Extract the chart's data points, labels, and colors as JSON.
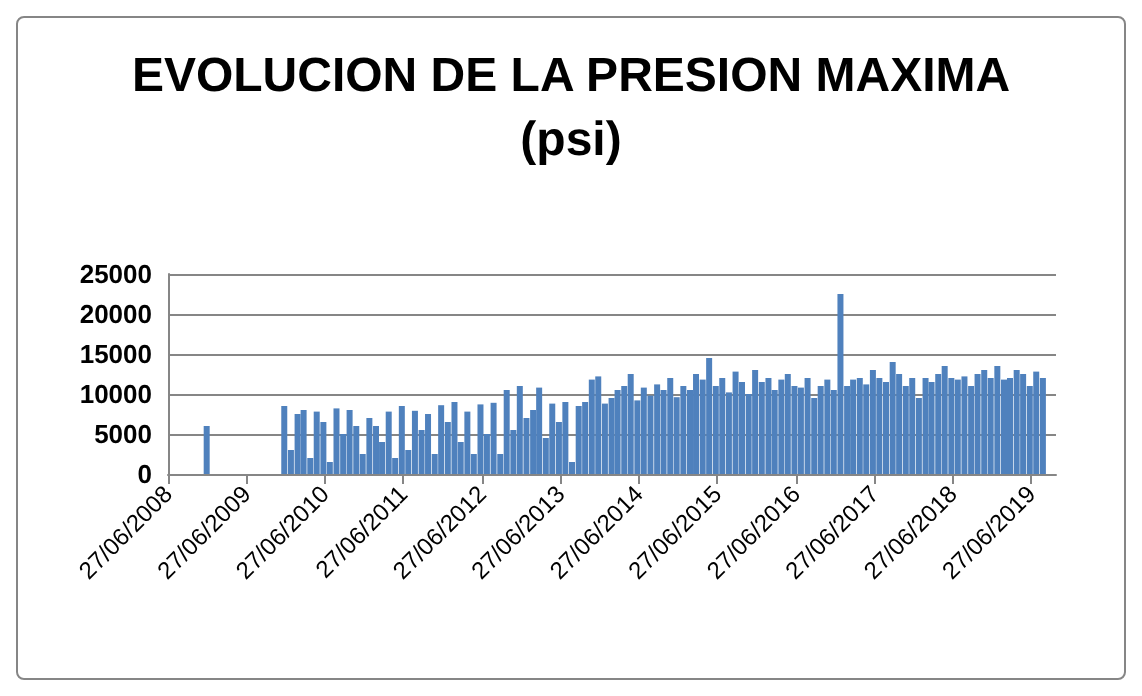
{
  "chart_data": {
    "type": "bar",
    "title": "EVOLUCION DE LA PRESION MAXIMA\n(psi)",
    "color": "#4f81bd",
    "x": [
      "2008-12-24",
      "2009-12-20",
      "2010-01-20",
      "2010-02-20",
      "2010-03-20",
      "2010-04-20",
      "2010-05-20",
      "2010-06-20",
      "2010-07-20",
      "2010-08-20",
      "2010-09-20",
      "2010-10-20",
      "2010-11-20",
      "2010-12-20",
      "2011-01-20",
      "2011-02-20",
      "2011-03-20",
      "2011-04-20",
      "2011-05-20",
      "2011-06-20",
      "2011-07-20",
      "2011-08-20",
      "2011-09-20",
      "2011-10-20",
      "2011-11-20",
      "2011-12-20",
      "2012-01-20",
      "2012-02-20",
      "2012-03-20",
      "2012-04-20",
      "2012-05-20",
      "2012-06-20",
      "2012-07-20",
      "2012-08-20",
      "2012-09-20",
      "2012-10-20",
      "2012-11-20",
      "2012-12-20",
      "2013-01-20",
      "2013-02-20",
      "2013-03-20",
      "2013-04-20",
      "2013-05-20",
      "2013-06-20",
      "2013-07-20",
      "2013-08-20",
      "2013-09-20",
      "2013-10-20",
      "2013-11-20",
      "2013-12-20",
      "2014-01-20",
      "2014-02-20",
      "2014-03-20",
      "2014-04-20",
      "2014-05-20",
      "2014-06-20",
      "2014-07-20",
      "2014-08-20",
      "2014-09-20",
      "2014-10-20",
      "2014-11-20",
      "2014-12-20",
      "2015-01-20",
      "2015-02-20",
      "2015-03-20",
      "2015-04-20",
      "2015-05-20",
      "2015-06-20",
      "2015-07-20",
      "2015-08-20",
      "2015-09-20",
      "2015-10-20",
      "2015-11-20",
      "2015-12-20",
      "2016-01-20",
      "2016-02-20",
      "2016-03-20",
      "2016-04-20",
      "2016-05-20",
      "2016-06-20",
      "2016-07-20",
      "2016-08-20",
      "2016-09-20",
      "2016-10-20",
      "2016-11-20",
      "2016-12-20",
      "2017-01-20",
      "2017-02-20",
      "2017-03-20",
      "2017-04-20",
      "2017-05-20",
      "2017-06-20",
      "2017-07-20",
      "2017-08-20",
      "2017-09-20",
      "2017-10-20",
      "2017-11-20",
      "2017-12-20",
      "2018-01-20",
      "2018-02-20",
      "2018-03-20",
      "2018-04-20",
      "2018-05-20",
      "2018-06-20",
      "2018-07-20",
      "2018-08-20",
      "2018-09-20",
      "2018-10-20",
      "2018-11-20",
      "2018-12-20",
      "2019-01-20",
      "2019-02-20",
      "2019-03-20",
      "2019-04-20",
      "2019-05-20",
      "2019-06-20",
      "2019-07-20",
      "2019-08-20"
    ],
    "values": [
      6000,
      8500,
      3000,
      7500,
      8000,
      2000,
      7800,
      6500,
      1500,
      8200,
      5000,
      8000,
      6000,
      2500,
      7000,
      6000,
      4000,
      7800,
      2000,
      8500,
      3000,
      7900,
      5500,
      7500,
      2500,
      8600,
      6500,
      9000,
      4000,
      7800,
      2500,
      8700,
      5000,
      8900,
      2500,
      10500,
      5500,
      11000,
      7000,
      8000,
      10800,
      4500,
      8800,
      6500,
      9000,
      1500,
      8500,
      9000,
      11800,
      12200,
      8800,
      9500,
      10500,
      11000,
      12500,
      9200,
      10800,
      9800,
      11200,
      10500,
      12000,
      9600,
      11000,
      10500,
      12500,
      11800,
      14500,
      11000,
      12000,
      10200,
      12800,
      11500,
      10000,
      13000,
      11500,
      12000,
      10500,
      11800,
      12500,
      11000,
      10800,
      12000,
      9500,
      11000,
      11800,
      10500,
      22500,
      11000,
      11800,
      12000,
      11200,
      13000,
      12000,
      11500,
      14000,
      12500,
      11000,
      12000,
      9500,
      12000,
      11500,
      12500,
      13500,
      12000,
      11800,
      12200,
      11000,
      12500,
      13000,
      12000,
      13500,
      11800,
      12000,
      13000,
      12500,
      11000,
      12800,
      12000
    ],
    "xlim": [
      "2008-06-27",
      "2019-10-20"
    ],
    "xticks": [
      {
        "value": "2008-06-27",
        "label": "27/06/2008"
      },
      {
        "value": "2009-06-27",
        "label": "27/06/2009"
      },
      {
        "value": "2010-06-27",
        "label": "27/06/2010"
      },
      {
        "value": "2011-06-27",
        "label": "27/06/2011"
      },
      {
        "value": "2012-06-27",
        "label": "27/06/2012"
      },
      {
        "value": "2013-06-27",
        "label": "27/06/2013"
      },
      {
        "value": "2014-06-27",
        "label": "27/06/2014"
      },
      {
        "value": "2015-06-27",
        "label": "27/06/2015"
      },
      {
        "value": "2016-06-27",
        "label": "27/06/2016"
      },
      {
        "value": "2017-06-27",
        "label": "27/06/2017"
      },
      {
        "value": "2018-06-27",
        "label": "27/06/2018"
      },
      {
        "value": "2019-06-27",
        "label": "27/06/2019"
      }
    ],
    "ylim": [
      0,
      25000
    ],
    "yticks": [
      0,
      5000,
      10000,
      15000,
      20000,
      25000
    ],
    "grid": "y"
  }
}
